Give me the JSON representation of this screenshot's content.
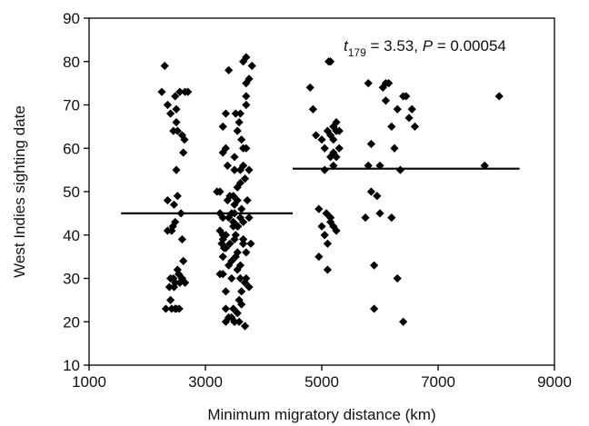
{
  "chart_data": {
    "type": "scatter",
    "title": "",
    "xlabel": "Minimum migratory distance (km)",
    "ylabel": "West Indies sighting date",
    "xlim": [
      1000,
      9000
    ],
    "ylim": [
      10,
      90
    ],
    "xticks": [
      1000,
      3000,
      5000,
      7000,
      9000
    ],
    "yticks": [
      10,
      20,
      30,
      40,
      50,
      60,
      70,
      80,
      90
    ],
    "grid": false,
    "annotation": {
      "t_symbol": "t",
      "t_subscript": "179",
      "t_value": " = 3.53, ",
      "p_symbol": "P",
      "p_value": " = 0.00054"
    },
    "group_means": [
      {
        "x_start": 1550,
        "x_end": 4500,
        "y": 45
      },
      {
        "x_start": 4500,
        "x_end": 8400,
        "y": 55.3
      }
    ],
    "series": [
      {
        "x": [
          2250,
          2300,
          2350,
          2400,
          2450,
          2500,
          2500,
          2500,
          2520,
          2480,
          2460,
          2440,
          2520,
          2540,
          2460,
          2480,
          2400,
          2420,
          2500,
          2480,
          2450,
          2520,
          2560,
          2600,
          2650,
          2620,
          2640,
          2580,
          2700,
          2350,
          2380,
          2350,
          2600,
          2620,
          2560,
          2650,
          2420,
          2480,
          2550,
          2400,
          2320,
          2600
        ],
        "y": [
          73,
          79,
          70,
          68,
          64,
          69,
          66,
          55,
          49,
          43,
          47,
          42,
          32,
          31,
          28,
          29,
          25,
          23,
          23,
          23,
          30,
          64,
          73,
          63,
          73,
          59,
          62,
          45,
          73,
          41,
          28,
          48,
          39,
          34,
          29,
          29,
          41,
          72,
          23,
          30,
          23,
          30
        ],
        "name": ""
      },
      {
        "x": [
          3200,
          3250,
          3300,
          3300,
          3350,
          3350,
          3400,
          3300,
          3350,
          3250,
          3300,
          3380,
          3400,
          3420,
          3380,
          3350,
          3320,
          3300,
          3280,
          3250,
          3300,
          3350,
          3400,
          3350,
          3300,
          3250,
          3350,
          3400,
          3420,
          3450,
          3480,
          3500,
          3520,
          3550,
          3500,
          3480,
          3450,
          3500,
          3550,
          3600,
          3650,
          3600,
          3550,
          3500,
          3520,
          3580,
          3620,
          3650,
          3700,
          3700,
          3750,
          3700,
          3650,
          3600,
          3550,
          3500,
          3480,
          3450,
          3500,
          3550,
          3600,
          3650,
          3700,
          3680,
          3620,
          3580,
          3550,
          3500,
          3450,
          3600,
          3650,
          3700,
          3750,
          3680,
          3620,
          3580,
          3550,
          3520,
          3480,
          3700,
          3750,
          3720,
          3650,
          3600,
          3560,
          3620,
          3680,
          3750,
          3780,
          3800,
          3700,
          3650
        ],
        "y": [
          50,
          45,
          59,
          40,
          68,
          37,
          78,
          65,
          60,
          41,
          39,
          56,
          44,
          49,
          48,
          40,
          37,
          31,
          38,
          31,
          35,
          23,
          21,
          20,
          44,
          50,
          27,
          33,
          38,
          34,
          43,
          47,
          40,
          36,
          20,
          23,
          30,
          45,
          51,
          55,
          60,
          52,
          48,
          55,
          68,
          66,
          62,
          56,
          70,
          72,
          76,
          81,
          80,
          68,
          64,
          58,
          49,
          45,
          39,
          42,
          44,
          38,
          36,
          29,
          27,
          25,
          22,
          20,
          21,
          33,
          39,
          30,
          28,
          19,
          24,
          20,
          32,
          35,
          42,
          60,
          55,
          48,
          38,
          30,
          42,
          46,
          53,
          44,
          38,
          79,
          75,
          43
        ],
        "name": ""
      },
      {
        "x": [
          4800,
          4850,
          4900,
          5000,
          5050,
          5050,
          4950,
          5100,
          5150,
          5200,
          5200,
          5250,
          5250,
          5300,
          5150,
          5000,
          5050,
          5100,
          4950,
          5100,
          5150,
          5200,
          5200,
          5250,
          5150,
          5120,
          5080,
          5150,
          5200,
          5250,
          5300,
          5800,
          5850,
          5800,
          5900,
          5950,
          6000,
          6050,
          6100,
          6150,
          6200,
          6250,
          6300,
          6350,
          6400,
          6500,
          6550,
          6600,
          6000,
          6100,
          5900,
          6200,
          6300,
          6400,
          5750,
          5850,
          6450,
          7800,
          8050
        ],
        "y": [
          74,
          69,
          63,
          62,
          60,
          55,
          46,
          64,
          63,
          65,
          59,
          58,
          66,
          64,
          44,
          42,
          40,
          38,
          35,
          32,
          58,
          56,
          62,
          64,
          80,
          80,
          45,
          43,
          42,
          41,
          60,
          75,
          61,
          56,
          33,
          49,
          45,
          74,
          75,
          75,
          65,
          60,
          69,
          55,
          72,
          67,
          69,
          65,
          56,
          71,
          23,
          44,
          30,
          20,
          44,
          50,
          72,
          56,
          72
        ],
        "name": ""
      }
    ]
  }
}
